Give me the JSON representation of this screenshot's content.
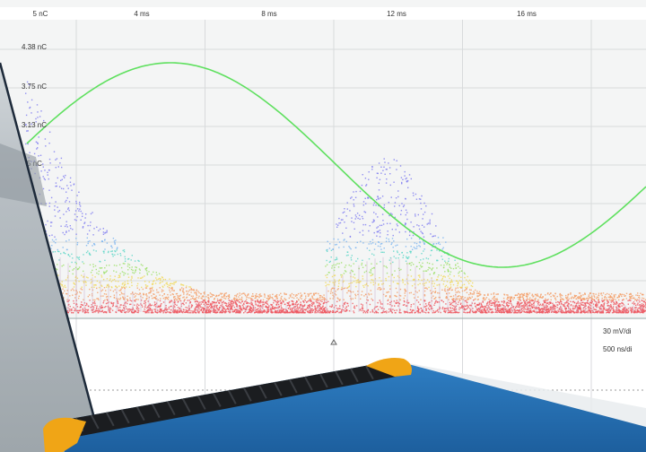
{
  "scope": {
    "top_axis": {
      "labels": [
        "5 nC",
        "4 ms",
        "8 ms",
        "12 ms",
        "16 ms"
      ]
    },
    "y_axis_labels": [
      "4.38 nC",
      "3.75 nC",
      "3.13 nC",
      "5 nC"
    ],
    "lower_panel": {
      "labels": [
        "30 mV/di",
        "500 ns/di"
      ]
    }
  }
}
